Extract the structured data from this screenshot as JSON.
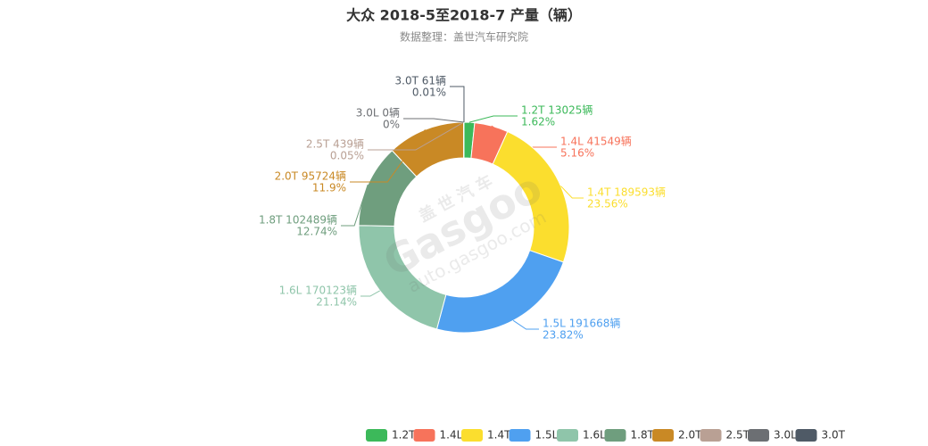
{
  "chart_data": {
    "type": "donut",
    "title": "大众 2018-5至2018-7 产量（辆）",
    "subtitle": "数据整理：盖世汽车研究院",
    "watermark": [
      "盖世汽车",
      "Gasgoo",
      "auto.gasgoo.com"
    ],
    "categories": [
      "1.2T",
      "1.4L",
      "1.4T",
      "1.5L",
      "1.6L",
      "1.8T",
      "2.0T",
      "2.5T",
      "3.0L",
      "3.0T"
    ],
    "values": [
      13025,
      41549,
      189593,
      191668,
      170123,
      102489,
      95724,
      439,
      0,
      61
    ],
    "value_labels": [
      "1.2T 13025辆",
      "1.4L 41549辆",
      "1.4T 189593辆",
      "1.5L 191668辆",
      "1.6L 170123辆",
      "1.8T 102489辆",
      "2.0T 95724辆",
      "2.5T 439辆",
      "3.0L 0辆",
      "3.0T 61辆"
    ],
    "percents": [
      1.62,
      5.16,
      23.56,
      23.82,
      21.14,
      12.74,
      11.9,
      0.05,
      0,
      0.01
    ],
    "percent_labels": [
      "1.62%",
      "5.16%",
      "23.56%",
      "23.82%",
      "21.14%",
      "12.74%",
      "11.9%",
      "0.05%",
      "0%",
      "0.01%"
    ],
    "colors": [
      "#3cb95a",
      "#f7735b",
      "#fbde2e",
      "#4fa0f0",
      "#8fc5aa",
      "#6f9e7e",
      "#c98925",
      "#b9a094",
      "#6c6f73",
      "#4f5a66"
    ],
    "legend": "bottom"
  }
}
